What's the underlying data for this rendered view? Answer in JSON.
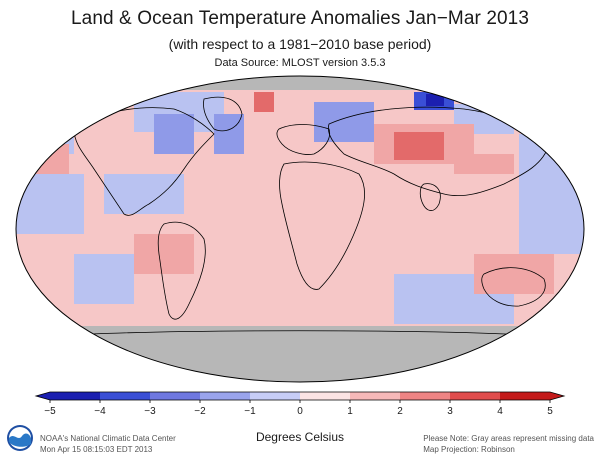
{
  "header": {
    "title": "Land & Ocean Temperature Anomalies Jan−Mar 2013",
    "subtitle": "(with respect to a 1981−2010 base period)",
    "source": "Data Source: MLOST version 3.5.3"
  },
  "map": {
    "projection_name": "Robinson",
    "ocean_base_color": "#f6c7c7",
    "land_outline_color": "#000000",
    "missing_color": "#b7b7b7",
    "regions": [
      {
        "name": "north-america",
        "anomaly": -0.5
      },
      {
        "name": "greenland",
        "anomaly": -1.5
      },
      {
        "name": "europe",
        "anomaly": -0.8
      },
      {
        "name": "siberia",
        "anomaly": -2.5
      },
      {
        "name": "central-asia",
        "anomaly": 2.5
      },
      {
        "name": "africa",
        "anomaly": 0.8
      },
      {
        "name": "south-america",
        "anomaly": 0.5
      },
      {
        "name": "australia",
        "anomaly": 1.0
      },
      {
        "name": "antarctica",
        "anomaly": null
      }
    ]
  },
  "colorbar": {
    "ticks": [
      "−5",
      "−4",
      "−3",
      "−2",
      "−1",
      "0",
      "1",
      "2",
      "3",
      "4",
      "5"
    ],
    "colors": [
      "#1b1fb0",
      "#3a4fd6",
      "#6f78e0",
      "#9aa4ec",
      "#c7cdf6",
      "#e9ecfb",
      "#fbe3e3",
      "#f6b9b9",
      "#ee8484",
      "#e04c4c",
      "#c31a1a"
    ],
    "label": "Degrees Celsius"
  },
  "footer": {
    "line1": "NOAA's National Climatic Data Center",
    "line2": "Mon Apr 15 08:15:03 EDT 2013",
    "note1": "Please Note: Gray areas represent missing data",
    "note2": "Map Projection: Robinson"
  }
}
